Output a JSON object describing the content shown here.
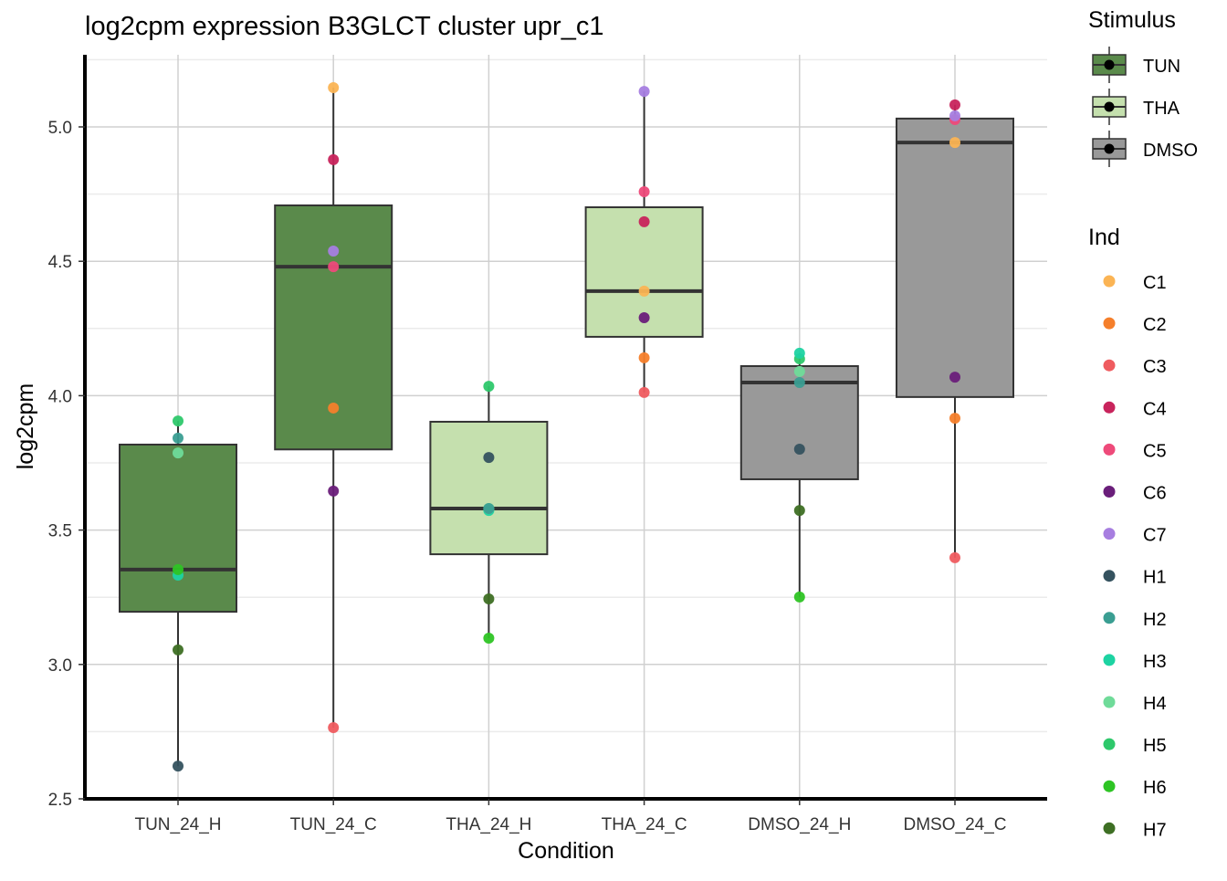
{
  "chart_data": {
    "type": "boxplot",
    "title": "log2cpm expression B3GLCT cluster upr_c1",
    "xlabel": "Condition",
    "ylabel": "log2cpm",
    "ylim": [
      2.5,
      5.27
    ],
    "yticks": [
      2.5,
      3.0,
      3.5,
      4.0,
      4.5,
      5.0
    ],
    "ytick_labels": [
      "2.5",
      "3.0",
      "3.5",
      "4.0",
      "4.5",
      "5.0"
    ],
    "grid": true,
    "categories": [
      "TUN_24_H",
      "TUN_24_C",
      "THA_24_H",
      "THA_24_C",
      "DMSO_24_H",
      "DMSO_24_C"
    ],
    "stimulus": [
      "TUN",
      "TUN",
      "THA",
      "THA",
      "DMSO",
      "DMSO"
    ],
    "boxes": [
      {
        "q1": 3.196,
        "median": 3.353,
        "q3": 3.818,
        "whisker_low": 2.622,
        "whisker_high": 3.906
      },
      {
        "q1": 3.8,
        "median": 4.48,
        "q3": 4.708,
        "whisker_low": 2.765,
        "whisker_high": 5.146
      },
      {
        "q1": 3.41,
        "median": 3.58,
        "q3": 3.903,
        "whisker_low": 3.098,
        "whisker_high": 4.035
      },
      {
        "q1": 4.219,
        "median": 4.389,
        "q3": 4.701,
        "whisker_low": 4.012,
        "whisker_high": 5.132
      },
      {
        "q1": 3.689,
        "median": 4.049,
        "q3": 4.11,
        "whisker_low": 3.251,
        "whisker_high": 4.158
      },
      {
        "q1": 3.995,
        "median": 4.942,
        "q3": 5.031,
        "whisker_low": 3.397,
        "whisker_high": 5.082
      }
    ],
    "points": [
      {
        "H5": 3.906,
        "H2": 3.842,
        "H4": 3.787,
        "H6": 3.353,
        "H3": 3.332,
        "H7": 3.054,
        "H1": 2.622
      },
      {
        "C1": 5.146,
        "C4": 4.878,
        "C7": 4.538,
        "C5": 4.48,
        "C2": 3.954,
        "C6": 3.645,
        "C3": 2.765
      },
      {
        "H5": 4.035,
        "H1": 3.77,
        "H2": 3.58,
        "H4": 3.58,
        "H3": 3.573,
        "H7": 3.244,
        "H6": 3.098
      },
      {
        "C7": 5.132,
        "C5": 4.759,
        "C4": 4.647,
        "C1": 4.389,
        "C6": 4.29,
        "C2": 4.141,
        "C3": 4.012
      },
      {
        "H3": 4.158,
        "H5": 4.137,
        "H4": 4.09,
        "H2": 4.049,
        "H1": 3.801,
        "H7": 3.573,
        "H6": 3.251
      },
      {
        "C4": 5.082,
        "C7": 5.041,
        "C5": 5.027,
        "C1": 4.942,
        "C6": 4.069,
        "C2": 3.916,
        "C3": 3.397
      }
    ],
    "legend_stimulus": {
      "title": "Stimulus",
      "entries": [
        "TUN",
        "THA",
        "DMSO"
      ],
      "colors": [
        "#5a8a4b",
        "#c5e0ae",
        "#999999"
      ]
    },
    "legend_ind": {
      "title": "Ind",
      "entries": [
        "C1",
        "C2",
        "C3",
        "C4",
        "C5",
        "C6",
        "C7",
        "H1",
        "H2",
        "H3",
        "H4",
        "H5",
        "H6",
        "H7"
      ],
      "colors": [
        "#fbb454",
        "#f57f2b",
        "#ef5b5f",
        "#c8245c",
        "#ee4a7a",
        "#6a1e7a",
        "#a77ee0",
        "#35525f",
        "#3a9e92",
        "#1dd3a2",
        "#6fdb99",
        "#2ec86b",
        "#2ec424",
        "#3e6f24"
      ]
    },
    "legend_placement": "right"
  }
}
